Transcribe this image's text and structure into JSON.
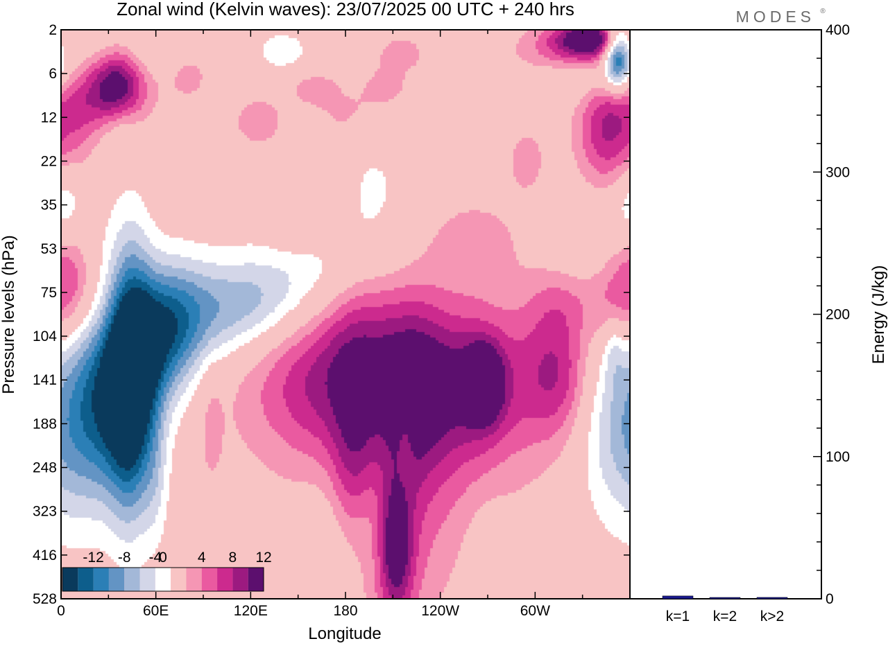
{
  "header": {
    "title": "Zonal wind (Kelvin waves):  23/07/2025  00 UTC  + 240 hrs",
    "brand": "MODES",
    "brand_mark": "®"
  },
  "chart_data": [
    {
      "type": "heatmap",
      "title": "Zonal wind (Kelvin waves):  23/07/2025  00 UTC  + 240 hrs",
      "xlabel": "Longitude",
      "ylabel": "Pressure levels (hPa)",
      "x_range_deg_east": [
        0,
        360
      ],
      "x_ticks": [
        {
          "lon": 0,
          "label": "0"
        },
        {
          "lon": 60,
          "label": "60E"
        },
        {
          "lon": 120,
          "label": "120E"
        },
        {
          "lon": 180,
          "label": "180"
        },
        {
          "lon": 240,
          "label": "120W"
        },
        {
          "lon": 300,
          "label": "60W"
        }
      ],
      "pressure_levels_hpa": [
        "2",
        "6",
        "12",
        "22",
        "35",
        "53",
        "75",
        "104",
        "141",
        "188",
        "248",
        "323",
        "416",
        "528"
      ],
      "colorbar": {
        "labels": [
          "-12",
          "-8",
          "-4",
          "0",
          "4",
          "8",
          "12"
        ],
        "levels": [
          -14,
          -12,
          -10,
          -8,
          -6,
          -4,
          -2,
          2,
          4,
          6,
          8,
          10,
          12,
          14
        ],
        "colors": [
          "#0a3a5c",
          "#0d5e8c",
          "#2b7fb6",
          "#6394c4",
          "#a3b8d8",
          "#d3d6e8",
          "#ffffff",
          "#f8c4c4",
          "#f596b4",
          "#ea5aa0",
          "#cc2a8e",
          "#9c1a80",
          "#5c0f6e"
        ]
      },
      "blobs": [
        {
          "lon": 44,
          "lev": 8.0,
          "dx": 10,
          "dl": 2.1,
          "v": -15
        },
        {
          "lon": 44,
          "lev": 8.0,
          "dx": 22,
          "dl": 1.6,
          "v": -4
        },
        {
          "lon": 28,
          "lev": 8.3,
          "dx": 14,
          "dl": 1.6,
          "v": -8
        },
        {
          "lon": 55,
          "lev": 7.3,
          "dx": 14,
          "dl": 1.0,
          "v": -6
        },
        {
          "lon": 70,
          "lev": 6.7,
          "dx": 16,
          "dl": 1.0,
          "v": -7
        },
        {
          "lon": 90,
          "lev": 6.5,
          "dx": 28,
          "dl": 0.9,
          "v": -5
        },
        {
          "lon": 122,
          "lev": 6.3,
          "dx": 24,
          "dl": 0.7,
          "v": -4
        },
        {
          "lon": 150,
          "lev": 5.6,
          "dx": 28,
          "dl": 0.8,
          "v": -3
        },
        {
          "lon": 195,
          "lev": 4.2,
          "dx": 26,
          "dl": 1.8,
          "v": -2.6
        },
        {
          "lon": 12,
          "lev": 9.2,
          "dx": 14,
          "dl": 1.6,
          "v": -3.5
        },
        {
          "lon": 60,
          "lev": 10.2,
          "dx": 6,
          "dl": 1.2,
          "v": -3
        },
        {
          "lon": 95,
          "lev": 11.5,
          "dx": 5,
          "dl": 1.2,
          "v": -2.6
        },
        {
          "lon": 170,
          "lev": 12.0,
          "dx": 14,
          "dl": 1.4,
          "v": -2.5
        },
        {
          "lon": 195,
          "lev": 11.0,
          "dx": 10,
          "dl": 1.0,
          "v": -2.5
        },
        {
          "lon": 218,
          "lev": 9.2,
          "dx": 4,
          "dl": 0.8,
          "v": -2.5
        },
        {
          "lon": 270,
          "lev": 12.6,
          "dx": 10,
          "dl": 1.2,
          "v": -2.5
        },
        {
          "lon": 352,
          "lev": 9.0,
          "dx": 18,
          "dl": 1.6,
          "v": -6
        },
        {
          "lon": 345,
          "lev": 4.6,
          "dx": 20,
          "dl": 1.3,
          "v": -4
        },
        {
          "lon": 350,
          "lev": 7.3,
          "dx": 5,
          "dl": 0.5,
          "v": -3
        },
        {
          "lon": 338,
          "lev": 0.9,
          "dx": 28,
          "dl": 0.45,
          "v": -7
        },
        {
          "lon": 352,
          "lev": 0.6,
          "dx": 6,
          "dl": 0.5,
          "v": -13
        },
        {
          "lon": 10,
          "lev": 0.3,
          "dx": 18,
          "dl": 0.5,
          "v": -4
        },
        {
          "lon": 50,
          "lev": 0.5,
          "dx": 22,
          "dl": 0.5,
          "v": -3
        },
        {
          "lon": 38,
          "lev": 2.1,
          "dx": 8,
          "dl": 0.6,
          "v": -3
        },
        {
          "lon": 140,
          "lev": 0.5,
          "dx": 14,
          "dl": 0.4,
          "v": -3
        },
        {
          "lon": 2,
          "lev": 3.9,
          "dx": 8,
          "dl": 0.6,
          "v": -3
        },
        {
          "lon": 255,
          "lev": 1.5,
          "dx": 18,
          "dl": 0.3,
          "v": -2.5
        },
        {
          "lon": 35,
          "lev": 1.3,
          "dx": 12,
          "dl": 0.6,
          "v": 11
        },
        {
          "lon": 30,
          "lev": 1.0,
          "dx": 20,
          "dl": 0.9,
          "v": 4
        },
        {
          "lon": 325,
          "lev": 0.6,
          "dx": 26,
          "dl": 0.45,
          "v": 8
        },
        {
          "lon": 335,
          "lev": 0.2,
          "dx": 16,
          "dl": 0.3,
          "v": 11
        },
        {
          "lon": 350,
          "lev": 2.1,
          "dx": 14,
          "dl": 1.0,
          "v": 7
        },
        {
          "lon": 340,
          "lev": 3.0,
          "dx": 14,
          "dl": 1.3,
          "v": 3.5
        },
        {
          "lon": 352,
          "lev": 6.0,
          "dx": 14,
          "dl": 0.9,
          "v": 6
        },
        {
          "lon": 318,
          "lev": 6.2,
          "dx": 16,
          "dl": 0.6,
          "v": 3
        },
        {
          "lon": 180,
          "lev": 2.0,
          "dx": 16,
          "dl": 0.5,
          "v": 3
        },
        {
          "lon": 125,
          "lev": 2.1,
          "dx": 14,
          "dl": 0.5,
          "v": 3
        },
        {
          "lon": 245,
          "lev": 1.5,
          "dx": 16,
          "dl": 0.5,
          "v": 3
        },
        {
          "lon": 160,
          "lev": 1.3,
          "dx": 12,
          "dl": 0.3,
          "v": 3
        },
        {
          "lon": 205,
          "lev": 1.3,
          "dx": 12,
          "dl": 0.4,
          "v": 3
        },
        {
          "lon": 80,
          "lev": 1.0,
          "dx": 12,
          "dl": 0.5,
          "v": 3
        },
        {
          "lon": 215,
          "lev": 0.5,
          "dx": 12,
          "dl": 0.3,
          "v": 3
        },
        {
          "lon": 6,
          "lev": 5.5,
          "dx": 10,
          "dl": 0.8,
          "v": 4
        },
        {
          "lon": 12,
          "lev": 1.7,
          "dx": 8,
          "dl": 1.1,
          "v": 3
        },
        {
          "lon": 148,
          "lev": 4.4,
          "dx": 12,
          "dl": 0.5,
          "v": 2.6
        },
        {
          "lon": 168,
          "lev": 3.8,
          "dx": 10,
          "dl": 0.6,
          "v": 3
        },
        {
          "lon": 295,
          "lev": 3.0,
          "dx": 10,
          "dl": 0.6,
          "v": 3
        },
        {
          "lon": 260,
          "lev": 4.8,
          "dx": 22,
          "dl": 0.7,
          "v": 3
        },
        {
          "lon": 190,
          "lev": 7.0,
          "dx": 16,
          "dl": 1.2,
          "v": 5
        },
        {
          "lon": 222,
          "lev": 8.0,
          "dx": 16,
          "dl": 1.5,
          "v": 8.5
        },
        {
          "lon": 258,
          "lev": 8.0,
          "dx": 20,
          "dl": 1.2,
          "v": 7
        },
        {
          "lon": 268,
          "lev": 8.1,
          "dx": 8,
          "dl": 0.6,
          "v": 9
        },
        {
          "lon": 315,
          "lev": 7.8,
          "dx": 14,
          "dl": 1.0,
          "v": 5
        },
        {
          "lon": 300,
          "lev": 8.0,
          "dx": 24,
          "dl": 1.4,
          "v": 3.5
        },
        {
          "lon": 168,
          "lev": 8.0,
          "dx": 22,
          "dl": 1.2,
          "v": 4
        },
        {
          "lon": 200,
          "lev": 8.5,
          "dx": 60,
          "dl": 1.8,
          "v": 2.8
        },
        {
          "lon": 140,
          "lev": 8.0,
          "dx": 30,
          "dl": 1.2,
          "v": 2.6
        },
        {
          "lon": 225,
          "lev": 10.6,
          "dx": 38,
          "dl": 2.2,
          "v": 3
        },
        {
          "lon": 185,
          "lev": 10.0,
          "dx": 10,
          "dl": 1.4,
          "v": 5
        },
        {
          "lon": 212,
          "lev": 11.8,
          "dx": 7,
          "dl": 1.0,
          "v": 8
        },
        {
          "lon": 212,
          "lev": 12.4,
          "dx": 14,
          "dl": 1.8,
          "v": 3
        },
        {
          "lon": 95,
          "lev": 9.6,
          "dx": 5,
          "dl": 1.2,
          "v": 3
        },
        {
          "lon": 30,
          "lev": 6.3,
          "dx": 24,
          "dl": 0.8,
          "v": 3
        }
      ]
    },
    {
      "type": "bar",
      "categories": [
        "k=1",
        "k=2",
        "k>2"
      ],
      "values": [
        2,
        0.5,
        1
      ],
      "ylabel": "Energy (J/kg)",
      "ylim": [
        0,
        400
      ],
      "y_ticks": [
        "0",
        "100",
        "200",
        "300",
        "400"
      ],
      "bar_color": "#1a1a8c"
    }
  ]
}
